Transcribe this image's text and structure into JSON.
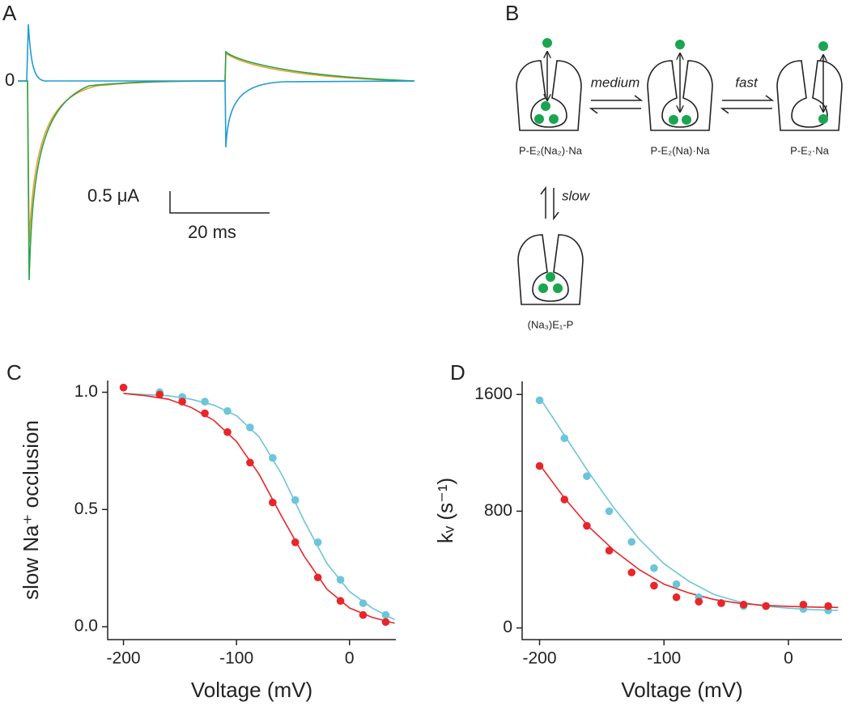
{
  "panel_labels": [
    "A",
    "B",
    "C",
    "D"
  ],
  "traces": {
    "zero_label": "0",
    "current_scale": "0.5 μA",
    "time_scale": "20 ms"
  },
  "diagram": {
    "states": [
      {
        "label": "P-E₂(Na₂)·Na"
      },
      {
        "label": "P-E₂(Na)·Na"
      },
      {
        "label": "P-E₂·Na"
      },
      {
        "label": "(Na₃)E₁-P"
      }
    ],
    "transitions": [
      "medium",
      "fast",
      "slow"
    ]
  },
  "chart_data": [
    {
      "type": "scatter",
      "xlabel": "Voltage (mV)",
      "ylabel": "slow Na⁺ occlusion",
      "xlim": [
        -214,
        41
      ],
      "xticks": [
        -200,
        -100,
        0
      ],
      "ylim": [
        -0.055,
        1.05
      ],
      "yticks": [
        {
          "value": 0,
          "label": "0.0"
        },
        0.5,
        {
          "value": 1,
          "label": "1.0"
        }
      ],
      "series": [
        {
          "color": "#6cc5d9",
          "x": [
            -168,
            -148,
            -128,
            -108,
            -88,
            -68,
            -48,
            -28,
            -8,
            12,
            32
          ],
          "values": [
            1.0,
            0.98,
            0.96,
            0.92,
            0.85,
            0.72,
            0.54,
            0.36,
            0.2,
            0.1,
            0.05
          ]
        },
        {
          "color": "#e8262a",
          "x": [
            -200,
            -168,
            -148,
            -128,
            -108,
            -88,
            -68,
            -48,
            -28,
            -8,
            12,
            32
          ],
          "values": [
            1.02,
            0.99,
            0.96,
            0.91,
            0.83,
            0.7,
            0.53,
            0.36,
            0.21,
            0.11,
            0.05,
            0.02
          ]
        }
      ],
      "fits": [
        {
          "color": "#6cc5d9",
          "x": [
            -200,
            -180,
            -160,
            -140,
            -120,
            -100,
            -80,
            -60,
            -40,
            -20,
            0,
            20,
            40
          ],
          "values": [
            0.995,
            0.99,
            0.985,
            0.97,
            0.945,
            0.9,
            0.81,
            0.65,
            0.45,
            0.27,
            0.15,
            0.08,
            0.03
          ]
        },
        {
          "color": "#e8262a",
          "x": [
            -200,
            -180,
            -160,
            -140,
            -120,
            -100,
            -80,
            -60,
            -40,
            -20,
            0,
            20,
            40
          ],
          "values": [
            0.995,
            0.985,
            0.97,
            0.935,
            0.88,
            0.79,
            0.65,
            0.47,
            0.3,
            0.16,
            0.08,
            0.04,
            0.015
          ]
        }
      ]
    },
    {
      "type": "scatter",
      "xlabel": "Voltage (mV)",
      "ylabel": "kᵥ (s⁻¹)",
      "xlim": [
        -214,
        43
      ],
      "xticks": [
        -200,
        -100,
        0
      ],
      "ylim": [
        -80,
        1690
      ],
      "yticks": [
        0,
        800,
        1600
      ],
      "series": [
        {
          "color": "#6cc5d9",
          "x": [
            -200,
            -180,
            -162,
            -144,
            -126,
            -108,
            -90,
            -72,
            -54,
            -36,
            -18,
            12,
            32
          ],
          "values": [
            1560,
            1300,
            1040,
            800,
            590,
            410,
            300,
            210,
            170,
            150,
            150,
            130,
            120
          ]
        },
        {
          "color": "#e8262a",
          "x": [
            -200,
            -180,
            -162,
            -144,
            -126,
            -108,
            -90,
            -72,
            -54,
            -36,
            -18,
            12,
            32
          ],
          "values": [
            1110,
            880,
            700,
            530,
            380,
            290,
            210,
            180,
            170,
            160,
            150,
            160,
            150
          ]
        }
      ],
      "fits": [
        {
          "color": "#6cc5d9",
          "x": [
            -200,
            -180,
            -160,
            -140,
            -120,
            -100,
            -80,
            -60,
            -40,
            -20,
            0,
            20,
            40
          ],
          "values": [
            1580,
            1320,
            1060,
            820,
            610,
            440,
            320,
            230,
            180,
            150,
            135,
            125,
            120
          ]
        },
        {
          "color": "#e8262a",
          "x": [
            -200,
            -180,
            -160,
            -140,
            -120,
            -100,
            -80,
            -60,
            -40,
            -20,
            0,
            20,
            40
          ],
          "values": [
            1120,
            890,
            690,
            530,
            400,
            300,
            240,
            195,
            170,
            155,
            148,
            143,
            140
          ]
        }
      ]
    }
  ]
}
